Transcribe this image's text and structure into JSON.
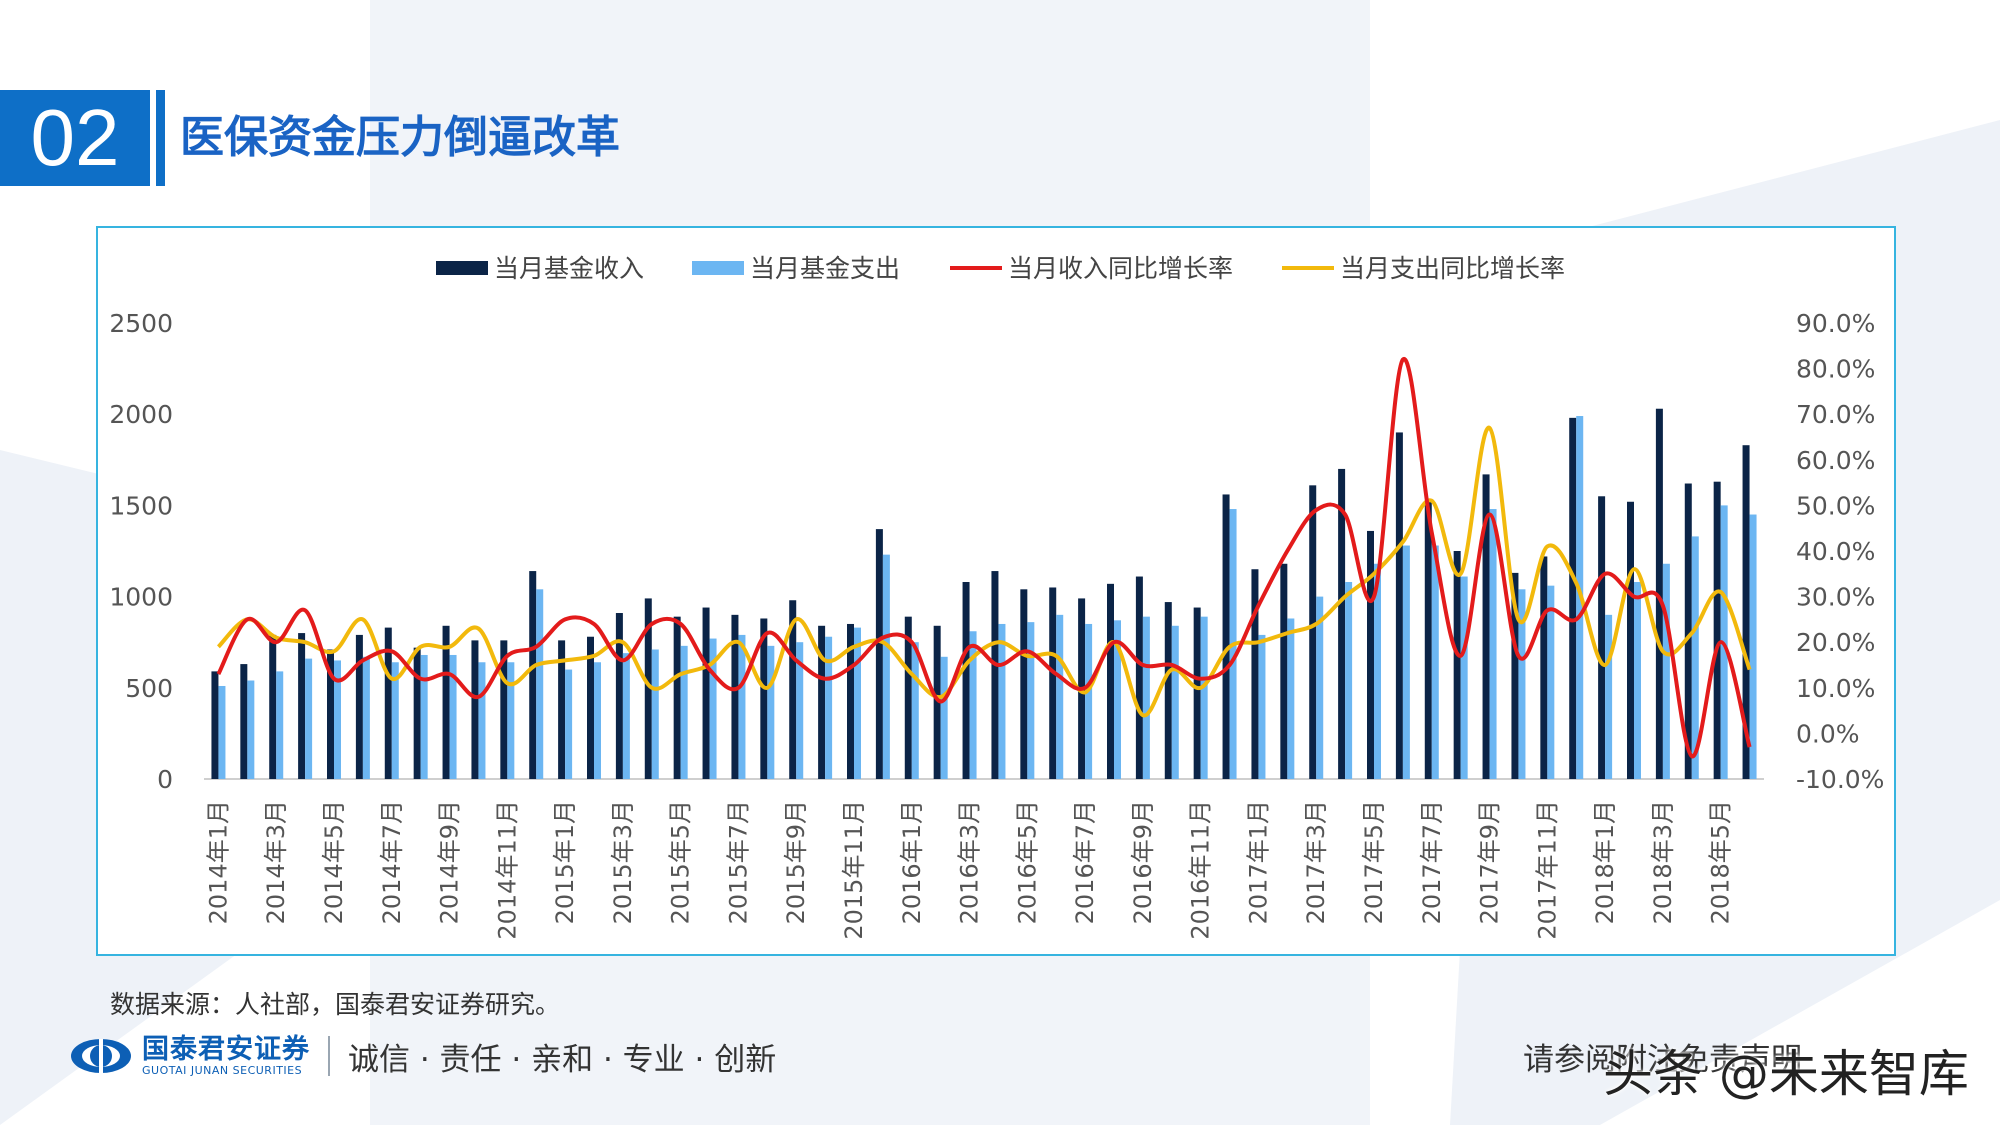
{
  "section": {
    "number": "02",
    "title": "医保资金压力倒逼改革"
  },
  "chart_data": {
    "type": "bar+line",
    "legend_position": "top-center",
    "grid": false,
    "categories": [
      "2014年1月",
      "2014年2月",
      "2014年3月",
      "2014年4月",
      "2014年5月",
      "2014年6月",
      "2014年7月",
      "2014年8月",
      "2014年9月",
      "2014年10月",
      "2014年11月",
      "2014年12月",
      "2015年1月",
      "2015年2月",
      "2015年3月",
      "2015年4月",
      "2015年5月",
      "2015年6月",
      "2015年7月",
      "2015年8月",
      "2015年9月",
      "2015年10月",
      "2015年11月",
      "2015年12月",
      "2016年1月",
      "2016年2月",
      "2016年3月",
      "2016年4月",
      "2016年5月",
      "2016年6月",
      "2016年7月",
      "2016年8月",
      "2016年9月",
      "2016年10月",
      "2016年11月",
      "2016年12月",
      "2017年1月",
      "2017年2月",
      "2017年3月",
      "2017年4月",
      "2017年5月",
      "2017年6月",
      "2017年7月",
      "2017年8月",
      "2017年9月",
      "2017年10月",
      "2017年11月",
      "2017年12月",
      "2018年1月",
      "2018年2月",
      "2018年3月",
      "2018年4月",
      "2018年5月",
      "2018年6月"
    ],
    "xtick_labels": [
      "2014年1月",
      "2014年3月",
      "2014年5月",
      "2014年7月",
      "2014年9月",
      "2014年11月",
      "2015年1月",
      "2015年3月",
      "2015年5月",
      "2015年7月",
      "2015年9月",
      "2015年11月",
      "2016年1月",
      "2016年3月",
      "2016年5月",
      "2016年7月",
      "2016年9月",
      "2016年11月",
      "2017年1月",
      "2017年3月",
      "2017年5月",
      "2017年7月",
      "2017年9月",
      "2017年11月",
      "2018年1月",
      "2018年3月",
      "2018年5月"
    ],
    "y_left": {
      "range": [
        0,
        2500
      ],
      "ticks": [
        "0",
        "500",
        "1000",
        "1500",
        "2000",
        "2500"
      ]
    },
    "y_right": {
      "range": [
        -10,
        90
      ],
      "unit": "%",
      "ticks": [
        "-10.0%",
        "0.0%",
        "10.0%",
        "20.0%",
        "30.0%",
        "40.0%",
        "50.0%",
        "60.0%",
        "70.0%",
        "80.0%",
        "90.0%"
      ]
    },
    "series": [
      {
        "name": "当月基金收入",
        "type": "bar",
        "axis": "left",
        "color": "#0b2447",
        "values": [
          590,
          630,
          790,
          800,
          710,
          790,
          830,
          720,
          840,
          760,
          760,
          1140,
          760,
          780,
          910,
          990,
          890,
          940,
          900,
          880,
          980,
          840,
          850,
          1370,
          890,
          840,
          1080,
          1140,
          1040,
          1050,
          990,
          1070,
          1110,
          970,
          940,
          1560,
          1150,
          1180,
          1610,
          1700,
          1360,
          1900,
          1520,
          1250,
          1670,
          1130,
          1220,
          1980,
          1550,
          1520,
          2030,
          1620,
          1630,
          1830
        ]
      },
      {
        "name": "当月基金支出",
        "type": "bar",
        "axis": "left",
        "color": "#6cb6f2",
        "values": [
          510,
          540,
          590,
          660,
          650,
          670,
          640,
          680,
          680,
          640,
          640,
          1040,
          600,
          640,
          690,
          710,
          730,
          770,
          790,
          730,
          750,
          780,
          830,
          1230,
          750,
          670,
          810,
          850,
          860,
          900,
          850,
          870,
          890,
          840,
          890,
          1480,
          790,
          880,
          1000,
          1080,
          1180,
          1280,
          1280,
          1110,
          1480,
          1040,
          1060,
          1990,
          900,
          1080,
          1180,
          1330,
          1500,
          1450
        ]
      },
      {
        "name": "当月收入同比增长率",
        "type": "line",
        "axis": "right",
        "color": "#e31b1b",
        "values": [
          13,
          25,
          20,
          27,
          12,
          16,
          18,
          12,
          13,
          8,
          17,
          19,
          25,
          24,
          16,
          24,
          24,
          14,
          10,
          22,
          16,
          12,
          15,
          21,
          20,
          7,
          19,
          15,
          18,
          13,
          10,
          20,
          15,
          15,
          12,
          15,
          28,
          40,
          49,
          48,
          30,
          82,
          44,
          17,
          48,
          17,
          27,
          25,
          35,
          30,
          28,
          -5,
          20,
          -3
        ]
      },
      {
        "name": "当月支出同比增长率",
        "type": "line",
        "axis": "right",
        "color": "#f2b90c",
        "values": [
          19,
          25,
          21,
          20,
          18,
          25,
          12,
          19,
          19,
          23,
          11,
          15,
          16,
          17,
          20,
          10,
          13,
          15,
          20,
          10,
          25,
          16,
          19,
          20,
          13,
          8,
          16,
          20,
          17,
          17,
          9,
          20,
          4,
          14,
          10,
          19,
          20,
          22,
          24,
          30,
          35,
          42,
          51,
          35,
          67,
          25,
          41,
          33,
          15,
          36,
          18,
          22,
          31,
          14
        ]
      }
    ]
  },
  "source": "数据来源：人社部，国泰君安证券研究。",
  "footer": {
    "brand_cn": "国泰君安证券",
    "brand_en": "GUOTAI JUNAN SECURITIES",
    "slogan": "诚信 · 责任 · 亲和 · 专业 · 创新",
    "disclaimer": "请参阅附注免责声明",
    "watermark": "头条 @未来智库"
  },
  "colors": {
    "accent_blue": "#0e6fc7",
    "frame_border": "#36b4e0",
    "bg_shape": "#edf1f7"
  }
}
